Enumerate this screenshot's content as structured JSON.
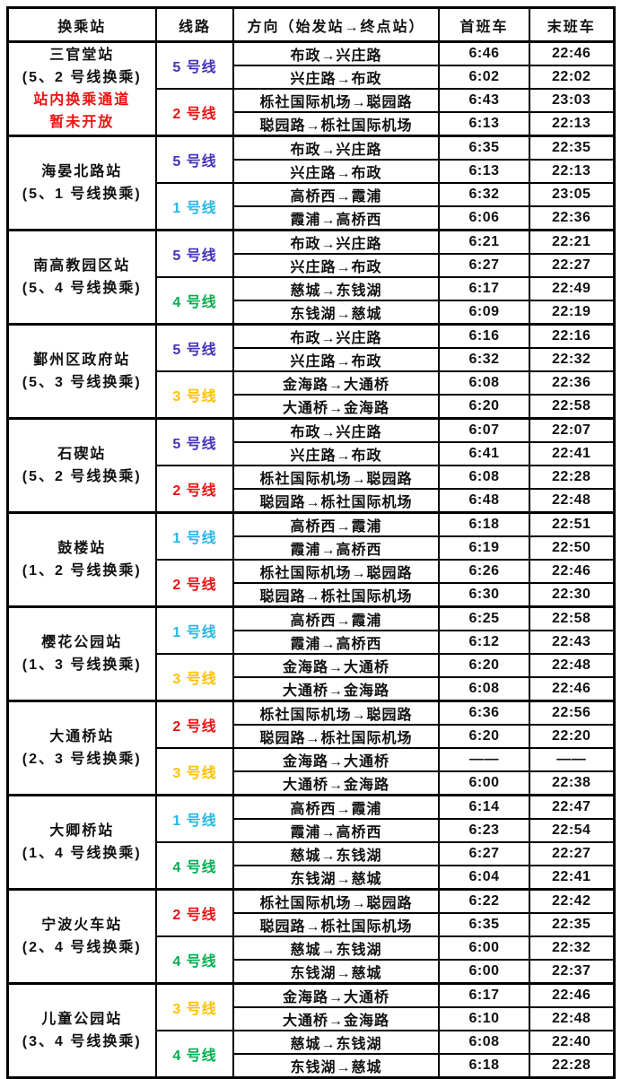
{
  "page": {
    "background": "#ffffff",
    "text_color": "#111111",
    "border_color": "#000000",
    "note_color": "#ee1111"
  },
  "header": {
    "station": "换乘站",
    "line": "线路",
    "direction": "方向（始发站→终点站）",
    "first_train": "首班车",
    "last_train": "末班车"
  },
  "line_colors": {
    "line1": "#29b6e8",
    "line2": "#ee1111",
    "line3": "#ffc000",
    "line4": "#00b050",
    "line5": "#4433bb"
  },
  "stations": [
    {
      "name": "三官堂站",
      "transfer": "(5、2 号线换乘)",
      "note": [
        "站内换乘通道",
        "暂未开放"
      ],
      "lines": [
        {
          "label": "5 号线",
          "color": "#4433bb",
          "rows": [
            {
              "direction": "布政→兴庄路",
              "first": "6:46",
              "last": "22:46"
            },
            {
              "direction": "兴庄路→布政",
              "first": "6:02",
              "last": "22:02"
            }
          ]
        },
        {
          "label": "2 号线",
          "color": "#ee1111",
          "rows": [
            {
              "direction": "栎社国际机场→聪园路",
              "first": "6:43",
              "last": "23:03"
            },
            {
              "direction": "聪园路→栎社国际机场",
              "first": "6:13",
              "last": "22:13"
            }
          ]
        }
      ]
    },
    {
      "name": "海晏北路站",
      "transfer": "(5、1 号线换乘)",
      "note": [],
      "lines": [
        {
          "label": "5 号线",
          "color": "#4433bb",
          "rows": [
            {
              "direction": "布政→兴庄路",
              "first": "6:35",
              "last": "22:35"
            },
            {
              "direction": "兴庄路→布政",
              "first": "6:13",
              "last": "22:13"
            }
          ]
        },
        {
          "label": "1 号线",
          "color": "#29b6e8",
          "rows": [
            {
              "direction": "高桥西→霞浦",
              "first": "6:32",
              "last": "23:05"
            },
            {
              "direction": "霞浦→高桥西",
              "first": "6:06",
              "last": "22:36"
            }
          ]
        }
      ]
    },
    {
      "name": "南高教园区站",
      "transfer": "(5、4 号线换乘)",
      "note": [],
      "lines": [
        {
          "label": "5 号线",
          "color": "#4433bb",
          "rows": [
            {
              "direction": "布政→兴庄路",
              "first": "6:21",
              "last": "22:21"
            },
            {
              "direction": "兴庄路→布政",
              "first": "6:27",
              "last": "22:27"
            }
          ]
        },
        {
          "label": "4 号线",
          "color": "#00b050",
          "rows": [
            {
              "direction": "慈城→东钱湖",
              "first": "6:17",
              "last": "22:49"
            },
            {
              "direction": "东钱湖→慈城",
              "first": "6:09",
              "last": "22:19"
            }
          ]
        }
      ]
    },
    {
      "name": "鄞州区政府站",
      "transfer": "(5、3 号线换乘)",
      "note": [],
      "lines": [
        {
          "label": "5 号线",
          "color": "#4433bb",
          "rows": [
            {
              "direction": "布政→兴庄路",
              "first": "6:16",
              "last": "22:16"
            },
            {
              "direction": "兴庄路→布政",
              "first": "6:32",
              "last": "22:32"
            }
          ]
        },
        {
          "label": "3 号线",
          "color": "#ffc000",
          "rows": [
            {
              "direction": "金海路→大通桥",
              "first": "6:08",
              "last": "22:36"
            },
            {
              "direction": "大通桥→金海路",
              "first": "6:20",
              "last": "22:58"
            }
          ]
        }
      ]
    },
    {
      "name": "石碶站",
      "transfer": "(5、2 号线换乘)",
      "note": [],
      "lines": [
        {
          "label": "5 号线",
          "color": "#4433bb",
          "rows": [
            {
              "direction": "布政→兴庄路",
              "first": "6:07",
              "last": "22:07"
            },
            {
              "direction": "兴庄路→布政",
              "first": "6:41",
              "last": "22:41"
            }
          ]
        },
        {
          "label": "2 号线",
          "color": "#ee1111",
          "rows": [
            {
              "direction": "栎社国际机场→聪园路",
              "first": "6:08",
              "last": "22:28"
            },
            {
              "direction": "聪园路→栎社国际机场",
              "first": "6:48",
              "last": "22:48"
            }
          ]
        }
      ]
    },
    {
      "name": "鼓楼站",
      "transfer": "(1、2 号线换乘)",
      "note": [],
      "lines": [
        {
          "label": "1 号线",
          "color": "#29b6e8",
          "rows": [
            {
              "direction": "高桥西→霞浦",
              "first": "6:18",
              "last": "22:51"
            },
            {
              "direction": "霞浦→高桥西",
              "first": "6:19",
              "last": "22:50"
            }
          ]
        },
        {
          "label": "2 号线",
          "color": "#ee1111",
          "rows": [
            {
              "direction": "栎社国际机场→聪园路",
              "first": "6:26",
              "last": "22:46"
            },
            {
              "direction": "聪园路→栎社国际机场",
              "first": "6:30",
              "last": "22:30"
            }
          ]
        }
      ]
    },
    {
      "name": "樱花公园站",
      "transfer": "(1、3 号线换乘)",
      "note": [],
      "lines": [
        {
          "label": "1 号线",
          "color": "#29b6e8",
          "rows": [
            {
              "direction": "高桥西→霞浦",
              "first": "6:25",
              "last": "22:58"
            },
            {
              "direction": "霞浦→高桥西",
              "first": "6:12",
              "last": "22:43"
            }
          ]
        },
        {
          "label": "3 号线",
          "color": "#ffc000",
          "rows": [
            {
              "direction": "金海路→大通桥",
              "first": "6:20",
              "last": "22:48"
            },
            {
              "direction": "大通桥→金海路",
              "first": "6:08",
              "last": "22:46"
            }
          ]
        }
      ]
    },
    {
      "name": "大通桥站",
      "transfer": "(2、3 号线换乘)",
      "note": [],
      "lines": [
        {
          "label": "2 号线",
          "color": "#ee1111",
          "rows": [
            {
              "direction": "栎社国际机场→聪园路",
              "first": "6:36",
              "last": "22:56"
            },
            {
              "direction": "聪园路→栎社国际机场",
              "first": "6:20",
              "last": "22:20"
            }
          ]
        },
        {
          "label": "3 号线",
          "color": "#ffc000",
          "rows": [
            {
              "direction": "金海路→大通桥",
              "first": "——",
              "last": "——"
            },
            {
              "direction": "大通桥→金海路",
              "first": "6:00",
              "last": "22:38"
            }
          ]
        }
      ]
    },
    {
      "name": "大卿桥站",
      "transfer": "(1、4 号线换乘)",
      "note": [],
      "lines": [
        {
          "label": "1 号线",
          "color": "#29b6e8",
          "rows": [
            {
              "direction": "高桥西→霞浦",
              "first": "6:14",
              "last": "22:47"
            },
            {
              "direction": "霞浦→高桥西",
              "first": "6:23",
              "last": "22:54"
            }
          ]
        },
        {
          "label": "4 号线",
          "color": "#00b050",
          "rows": [
            {
              "direction": "慈城→东钱湖",
              "first": "6:27",
              "last": "22:27"
            },
            {
              "direction": "东钱湖→慈城",
              "first": "6:04",
              "last": "22:41"
            }
          ]
        }
      ]
    },
    {
      "name": "宁波火车站",
      "transfer": "(2、4 号线换乘)",
      "note": [],
      "lines": [
        {
          "label": "2 号线",
          "color": "#ee1111",
          "rows": [
            {
              "direction": "栎社国际机场→聪园路",
              "first": "6:22",
              "last": "22:42"
            },
            {
              "direction": "聪园路→栎社国际机场",
              "first": "6:35",
              "last": "22:35"
            }
          ]
        },
        {
          "label": "4 号线",
          "color": "#00b050",
          "rows": [
            {
              "direction": "慈城→东钱湖",
              "first": "6:00",
              "last": "22:32"
            },
            {
              "direction": "东钱湖→慈城",
              "first": "6:00",
              "last": "22:37"
            }
          ]
        }
      ]
    },
    {
      "name": "儿童公园站",
      "transfer": "(3、4 号线换乘)",
      "note": [],
      "lines": [
        {
          "label": "3 号线",
          "color": "#ffc000",
          "rows": [
            {
              "direction": "金海路→大通桥",
              "first": "6:17",
              "last": "22:46"
            },
            {
              "direction": "大通桥→金海路",
              "first": "6:10",
              "last": "22:48"
            }
          ]
        },
        {
          "label": "4 号线",
          "color": "#00b050",
          "rows": [
            {
              "direction": "慈城→东钱湖",
              "first": "6:08",
              "last": "22:40"
            },
            {
              "direction": "东钱湖→慈城",
              "first": "6:18",
              "last": "22:28"
            }
          ]
        }
      ]
    }
  ]
}
